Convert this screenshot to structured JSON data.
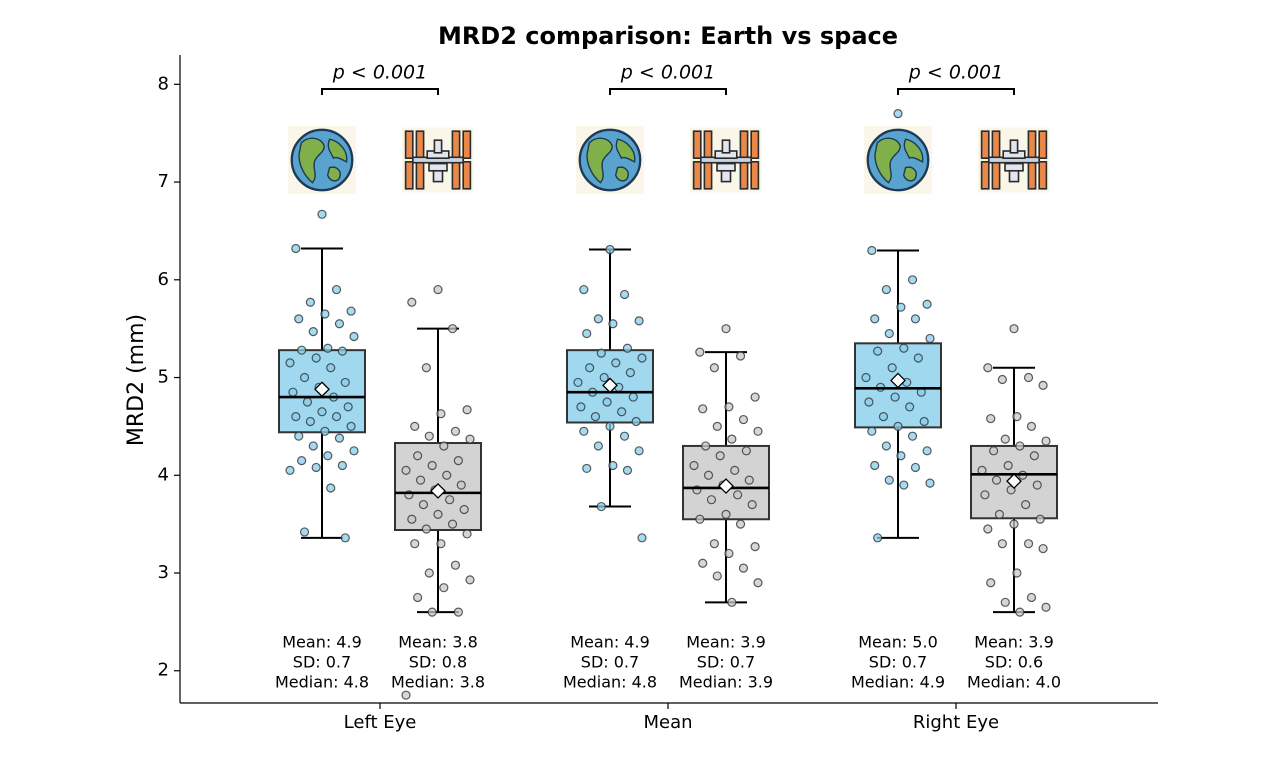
{
  "chart_data": {
    "type": "box",
    "title": "MRD2 comparison: Earth vs space",
    "ylabel": "MRD2 (mm)",
    "ylim": [
      1.67,
      8.3
    ],
    "yticks": [
      2,
      3,
      4,
      5,
      6,
      7,
      8
    ],
    "categories": [
      "Left Eye",
      "Mean",
      "Right Eye"
    ],
    "groups": [
      {
        "annotation": "p < 0.001",
        "boxes": [
          {
            "color": "#87ceeb",
            "whisker_low": 3.36,
            "q1": 4.44,
            "median": 4.8,
            "q3": 5.28,
            "whisker_high": 6.32,
            "mean": 4.88,
            "points": [
              6.67,
              6.32,
              5.9,
              5.77,
              5.68,
              5.65,
              5.6,
              5.55,
              5.47,
              5.42,
              5.3,
              5.28,
              5.27,
              5.2,
              5.15,
              5.1,
              5.0,
              4.95,
              4.9,
              4.85,
              4.8,
              4.75,
              4.7,
              4.65,
              4.6,
              4.6,
              4.55,
              4.5,
              4.45,
              4.4,
              4.38,
              4.3,
              4.25,
              4.2,
              4.15,
              4.1,
              4.08,
              4.05,
              3.87,
              3.42,
              3.36
            ],
            "stats": [
              "Mean: 4.9",
              "SD: 0.7",
              "Median: 4.8"
            ]
          },
          {
            "color": "#c8c8c8",
            "whisker_low": 2.6,
            "q1": 3.44,
            "median": 3.82,
            "q3": 4.33,
            "whisker_high": 5.5,
            "mean": 3.84,
            "points": [
              5.9,
              5.77,
              5.5,
              5.1,
              4.67,
              4.63,
              4.5,
              4.45,
              4.4,
              4.37,
              4.3,
              4.2,
              4.15,
              4.1,
              4.05,
              4.0,
              3.95,
              3.9,
              3.85,
              3.8,
              3.75,
              3.7,
              3.65,
              3.6,
              3.55,
              3.5,
              3.45,
              3.4,
              3.3,
              3.3,
              3.08,
              3.0,
              2.93,
              2.85,
              2.75,
              2.6,
              2.6,
              1.75
            ],
            "stats": [
              "Mean: 3.8",
              "SD: 0.8",
              "Median: 3.8"
            ]
          }
        ]
      },
      {
        "annotation": "p < 0.001",
        "boxes": [
          {
            "color": "#87ceeb",
            "whisker_low": 3.68,
            "q1": 4.54,
            "median": 4.85,
            "q3": 5.28,
            "whisker_high": 6.31,
            "mean": 4.92,
            "points": [
              6.31,
              5.9,
              5.85,
              5.6,
              5.58,
              5.55,
              5.45,
              5.3,
              5.25,
              5.2,
              5.15,
              5.1,
              5.05,
              5.0,
              4.95,
              4.9,
              4.85,
              4.8,
              4.75,
              4.7,
              4.65,
              4.6,
              4.55,
              4.5,
              4.45,
              4.4,
              4.3,
              4.25,
              4.1,
              4.07,
              4.05,
              3.68,
              3.36
            ],
            "stats": [
              "Mean: 4.9",
              "SD: 0.7",
              "Median: 4.8"
            ]
          },
          {
            "color": "#c8c8c8",
            "whisker_low": 2.7,
            "q1": 3.55,
            "median": 3.87,
            "q3": 4.3,
            "whisker_high": 5.26,
            "mean": 3.89,
            "points": [
              5.5,
              5.26,
              5.22,
              5.1,
              4.8,
              4.7,
              4.68,
              4.57,
              4.5,
              4.45,
              4.37,
              4.3,
              4.25,
              4.2,
              4.1,
              4.05,
              4.0,
              3.95,
              3.9,
              3.85,
              3.8,
              3.75,
              3.7,
              3.6,
              3.55,
              3.5,
              3.3,
              3.27,
              3.2,
              3.1,
              3.05,
              2.97,
              2.9,
              2.7
            ],
            "stats": [
              "Mean: 3.9",
              "SD: 0.7",
              "Median: 3.9"
            ]
          }
        ]
      },
      {
        "annotation": "p < 0.001",
        "boxes": [
          {
            "color": "#87ceeb",
            "whisker_low": 3.36,
            "q1": 4.49,
            "median": 4.89,
            "q3": 5.35,
            "whisker_high": 6.3,
            "mean": 4.97,
            "points": [
              7.7,
              6.3,
              6.0,
              5.9,
              5.75,
              5.72,
              5.6,
              5.6,
              5.45,
              5.4,
              5.3,
              5.27,
              5.2,
              5.1,
              5.0,
              4.95,
              4.9,
              4.85,
              4.8,
              4.75,
              4.7,
              4.6,
              4.55,
              4.5,
              4.45,
              4.4,
              4.3,
              4.25,
              4.2,
              4.1,
              4.08,
              3.95,
              3.92,
              3.9,
              3.36
            ],
            "stats": [
              "Mean: 5.0",
              "SD: 0.7",
              "Median: 4.9"
            ]
          },
          {
            "color": "#c8c8c8",
            "whisker_low": 2.6,
            "q1": 3.56,
            "median": 4.01,
            "q3": 4.3,
            "whisker_high": 5.1,
            "mean": 3.94,
            "points": [
              5.5,
              5.1,
              5.0,
              4.98,
              4.92,
              4.6,
              4.58,
              4.5,
              4.37,
              4.35,
              4.3,
              4.25,
              4.2,
              4.1,
              4.05,
              4.0,
              3.95,
              3.9,
              3.85,
              3.8,
              3.7,
              3.6,
              3.55,
              3.5,
              3.45,
              3.3,
              3.3,
              3.25,
              3.0,
              2.9,
              2.75,
              2.7,
              2.65,
              2.6
            ],
            "stats": [
              "Mean: 3.9",
              "SD: 0.6",
              "Median: 4.0"
            ]
          }
        ]
      }
    ]
  }
}
